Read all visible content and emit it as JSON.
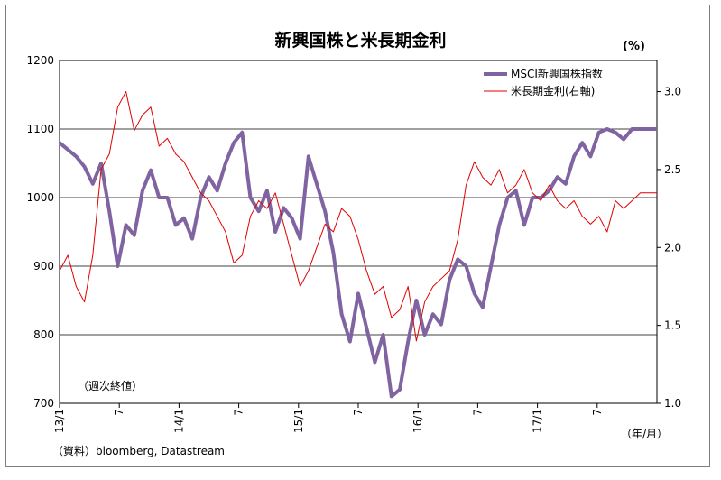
{
  "chart_data": {
    "type": "line",
    "title": "新興国株と米長期金利",
    "right_unit": "(%)",
    "annotation": "（週次終値）",
    "source": "（資料）bloomberg, Datastream",
    "x_unit": "（年/月）",
    "x_ticks": [
      "13/1",
      "7",
      "14/1",
      "7",
      "15/1",
      "7",
      "16/1",
      "7",
      "17/1",
      "7"
    ],
    "y_left": {
      "range": [
        700,
        1200
      ],
      "ticks": [
        "700",
        "800",
        "900",
        "1000",
        "1100",
        "1200"
      ]
    },
    "y_right": {
      "range": [
        1.0,
        3.2
      ],
      "ticks": [
        "1.0",
        "1.5",
        "2.0",
        "2.5",
        "3.0"
      ]
    },
    "grid": true,
    "legend_position": "top-right",
    "series": [
      {
        "name": "MSCI新興国株指数",
        "axis": "left",
        "color": "#8064a2",
        "x": [
          0,
          2,
          3,
          4,
          5,
          6,
          7,
          8,
          9,
          10,
          11,
          12,
          13,
          14,
          15,
          16,
          17,
          18,
          19,
          20,
          21,
          22,
          23,
          24,
          25,
          26,
          27,
          28,
          29,
          30,
          31,
          32,
          33,
          34,
          35,
          36,
          37,
          38,
          39,
          40,
          41,
          42,
          43,
          44,
          45,
          46,
          47,
          48,
          49,
          50,
          51,
          52,
          53,
          54
        ],
        "values": [
          1080,
          1060,
          1045,
          1020,
          1050,
          980,
          900,
          960,
          945,
          1010,
          1040,
          1000,
          1000,
          960,
          970,
          940,
          1000,
          1030,
          1010,
          1050,
          1080,
          1095,
          1000,
          980,
          1010,
          950,
          985,
          970,
          940,
          1060,
          1020,
          980,
          920,
          830,
          790,
          860,
          810,
          760,
          800,
          710,
          720,
          790,
          850,
          800,
          830,
          815,
          880,
          910,
          900,
          860,
          840,
          900,
          960,
          1000
        ],
        "x2": [
          55,
          56,
          57,
          58,
          59,
          60,
          61,
          62,
          63,
          64,
          65,
          66,
          67,
          68,
          69,
          70,
          71,
          72
        ],
        "values2": [
          1010,
          960,
          1000,
          1000,
          1010,
          1030,
          1020,
          1060,
          1080,
          1060,
          1095,
          1100,
          1095,
          1085,
          1100,
          1100,
          1100,
          1100
        ]
      },
      {
        "name": "米長期金利(右軸)",
        "axis": "right",
        "color": "#e00000",
        "x": [
          0,
          1,
          2,
          3,
          4,
          5,
          6,
          7,
          8,
          9,
          10,
          11,
          12,
          13,
          14,
          15,
          16,
          17,
          18,
          19,
          20,
          21,
          22,
          23,
          24,
          25,
          26,
          27,
          28,
          29,
          30,
          31,
          32,
          33,
          34,
          35,
          36,
          37,
          38,
          39,
          40,
          41,
          42,
          43,
          44,
          45,
          46,
          47,
          48,
          49,
          50,
          51,
          52,
          53,
          54
        ],
        "values": [
          1.85,
          1.95,
          1.75,
          1.65,
          1.95,
          2.5,
          2.6,
          2.9,
          3.0,
          2.75,
          2.85,
          2.9,
          2.65,
          2.7,
          2.6,
          2.55,
          2.45,
          2.35,
          2.3,
          2.2,
          2.1,
          1.9,
          1.95,
          2.2,
          2.3,
          2.25,
          2.35,
          2.15,
          1.95,
          1.75,
          1.85,
          2.0,
          2.15,
          2.1,
          2.25,
          2.2,
          2.05,
          1.85,
          1.7,
          1.75,
          1.55,
          1.6,
          1.75,
          1.4,
          1.65,
          1.75,
          1.8,
          1.85,
          2.05,
          2.4,
          2.55,
          2.45,
          2.4,
          2.5,
          2.35
        ],
        "x2": [
          55,
          56,
          57,
          58,
          59,
          60,
          61,
          62,
          63,
          64,
          65,
          66,
          67,
          68,
          69,
          70,
          71,
          72
        ],
        "values2": [
          2.4,
          2.5,
          2.35,
          2.3,
          2.4,
          2.3,
          2.25,
          2.3,
          2.2,
          2.15,
          2.2,
          2.1,
          2.3,
          2.25,
          2.3,
          2.35,
          2.35,
          2.35
        ]
      }
    ]
  }
}
